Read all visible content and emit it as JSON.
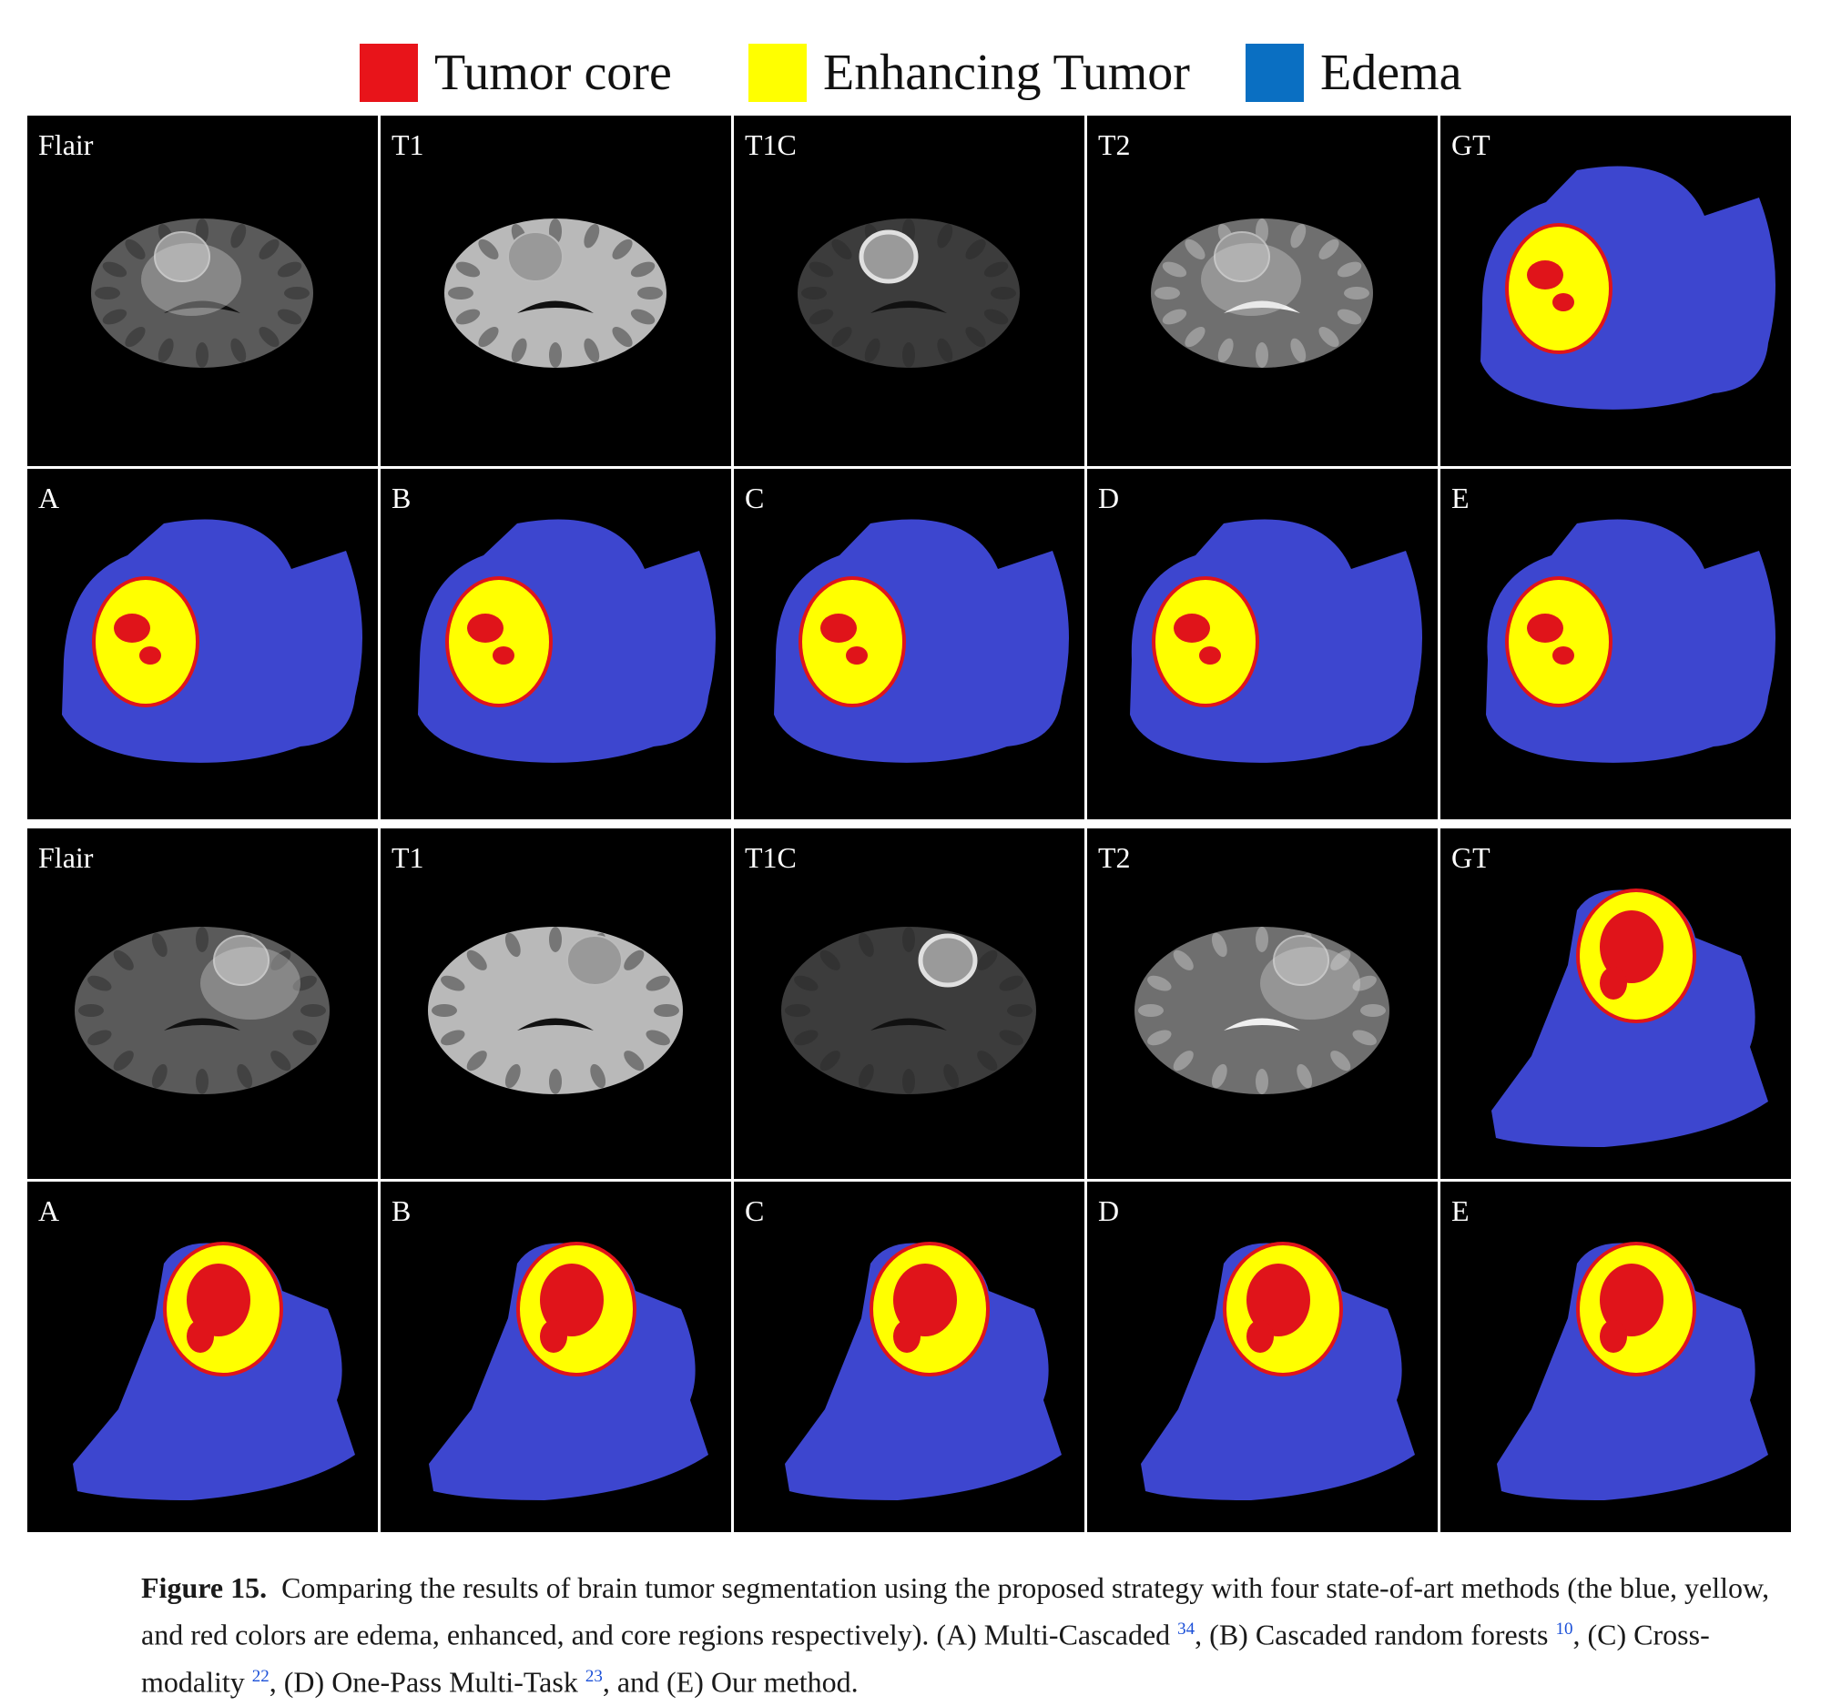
{
  "legend": {
    "items": [
      {
        "label": "Tumor core",
        "color": "#e8141a"
      },
      {
        "label": "Enhancing Tumor",
        "color": "#ffff00"
      },
      {
        "label": "Edema",
        "color": "#0a6fc2"
      }
    ]
  },
  "colors": {
    "edema": "#3d46cf",
    "enhancing": "#ffff00",
    "core": "#e0141a",
    "panel_bg": "#000000"
  },
  "blocks": [
    {
      "modality_labels": [
        "Flair",
        "T1",
        "T1C",
        "T2",
        "GT"
      ],
      "method_labels": [
        "A",
        "B",
        "C",
        "D",
        "E"
      ]
    },
    {
      "modality_labels": [
        "Flair",
        "T1",
        "T1C",
        "T2",
        "GT"
      ],
      "method_labels": [
        "A",
        "B",
        "C",
        "D",
        "E"
      ]
    }
  ],
  "caption": {
    "figure_label": "Figure 15.",
    "text_1": "Comparing the results of brain tumor segmentation using the proposed strategy with four state-of-art methods (the blue, yellow, and red colors are edema, enhanced, and core regions respectively). (A) Multi-Cascaded ",
    "ref_1": "34",
    "text_2": ", (B) Cascaded random forests ",
    "ref_2": "10",
    "text_3": ", (C) Cross-modality ",
    "ref_3": "22",
    "text_4": ", (D) One-Pass Multi-Task ",
    "ref_4": "23",
    "text_5": ", and (E) Our method."
  }
}
